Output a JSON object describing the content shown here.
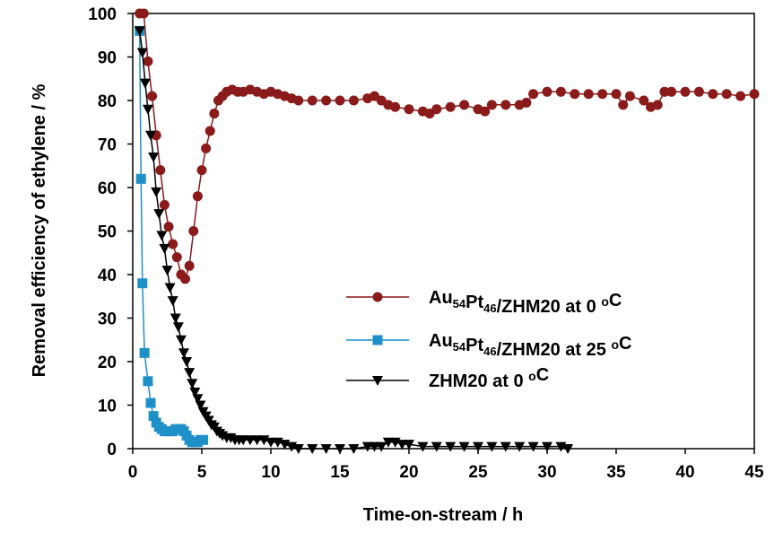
{
  "chart_data": {
    "type": "line",
    "xlabel": "Time-on-stream / h",
    "ylabel": "Removal efficiency of ethylene / %",
    "xlim": [
      0,
      45
    ],
    "ylim": [
      0,
      100
    ],
    "xticks": [
      "0",
      "5",
      "10",
      "15",
      "20",
      "25",
      "30",
      "35",
      "40",
      "45"
    ],
    "yticks": [
      "0",
      "10",
      "20",
      "30",
      "40",
      "50",
      "60",
      "70",
      "80",
      "90",
      "100"
    ],
    "grid": false,
    "legend_position": "center-right",
    "series": [
      {
        "name": "Au54Pt46/ZHM20 at 0 oC",
        "legend_parts": [
          {
            "t": "Au",
            "sub": false
          },
          {
            "t": "54",
            "sub": true
          },
          {
            "t": "Pt",
            "sub": false
          },
          {
            "t": "46",
            "sub": true
          },
          {
            "t": "/ZHM20 at 0 ",
            "sub": false
          },
          {
            "t": "o",
            "sup": true
          },
          {
            "t": "C",
            "sub": false
          }
        ],
        "color": "#8b1a1a",
        "marker": "circle",
        "x": [
          0.5,
          0.8,
          1.1,
          1.4,
          1.7,
          2.0,
          2.3,
          2.6,
          2.9,
          3.2,
          3.5,
          3.8,
          4.1,
          4.4,
          4.7,
          5.0,
          5.3,
          5.6,
          5.9,
          6.2,
          6.5,
          6.8,
          7.2,
          7.6,
          8.0,
          8.5,
          9.0,
          9.5,
          10.0,
          10.5,
          11.0,
          11.5,
          12.0,
          13,
          14,
          15,
          16,
          17,
          17.5,
          18,
          18.5,
          19,
          20,
          21,
          21.5,
          22,
          23,
          24,
          25,
          25.5,
          26,
          27,
          28,
          28.5,
          29,
          30,
          31,
          32,
          33,
          34,
          35,
          35.5,
          36,
          37,
          37.5,
          38,
          38.5,
          39,
          40,
          41,
          42,
          43,
          44,
          45
        ],
        "y": [
          100,
          100,
          89,
          81,
          72,
          64,
          56,
          51,
          47,
          44,
          40,
          39,
          42,
          50,
          58,
          64,
          69,
          73,
          77,
          80,
          81,
          82,
          82.5,
          82,
          82,
          82.5,
          82,
          81.5,
          82,
          81.5,
          81,
          80.5,
          80,
          80,
          80,
          80,
          80,
          80.5,
          81,
          80,
          79,
          78.5,
          78,
          77.5,
          77,
          78,
          78.5,
          79,
          78,
          77.5,
          79,
          79,
          79,
          79.5,
          81.5,
          82,
          82,
          81.5,
          81.5,
          81.5,
          81.5,
          79,
          81,
          80,
          78.5,
          79,
          82,
          82,
          82,
          82,
          81.5,
          81.5,
          81,
          81.5
        ]
      },
      {
        "name": "Au54Pt46/ZHM20 at 25 oC",
        "legend_parts": [
          {
            "t": "Au",
            "sub": false
          },
          {
            "t": "54",
            "sub": true
          },
          {
            "t": "Pt",
            "sub": false
          },
          {
            "t": "46",
            "sub": true
          },
          {
            "t": "/ZHM20 at 25 ",
            "sub": false
          },
          {
            "t": "o",
            "sup": true
          },
          {
            "t": "C",
            "sub": false
          }
        ],
        "color": "#1e90c8",
        "marker": "square",
        "x": [
          0.5,
          0.6,
          0.7,
          0.85,
          1.1,
          1.3,
          1.5,
          1.7,
          1.9,
          2.1,
          2.3,
          2.5,
          2.7,
          2.9,
          3.1,
          3.3,
          3.5,
          3.7,
          3.9,
          4.1,
          4.3,
          4.5,
          4.7,
          4.9,
          5.1
        ],
        "y": [
          96,
          62,
          38,
          22,
          15.5,
          10.5,
          7.5,
          6,
          5,
          4.5,
          4,
          4,
          4,
          4,
          4.5,
          4.5,
          4.5,
          4,
          3,
          2,
          1.5,
          1.5,
          1.5,
          2,
          2
        ]
      },
      {
        "name": "ZHM20 at 0 oC",
        "legend_parts": [
          {
            "t": "ZHM20 at 0 ",
            "sub": false
          },
          {
            "t": "o",
            "sup": true
          },
          {
            "t": "C",
            "sub": false
          }
        ],
        "color": "#000000",
        "marker": "triangle-down",
        "x": [
          0.5,
          0.7,
          0.9,
          1.1,
          1.3,
          1.5,
          1.7,
          1.9,
          2.1,
          2.3,
          2.5,
          2.7,
          2.9,
          3.1,
          3.3,
          3.5,
          3.7,
          3.9,
          4.1,
          4.3,
          4.5,
          4.7,
          4.9,
          5.1,
          5.3,
          5.5,
          5.7,
          5.9,
          6.1,
          6.3,
          6.5,
          6.8,
          7.1,
          7.4,
          7.7,
          8.0,
          8.5,
          9,
          9.5,
          10,
          10.5,
          11,
          11.5,
          12,
          13,
          14,
          15,
          16,
          17,
          17.5,
          18,
          18.5,
          19,
          19.5,
          20,
          21,
          22,
          23,
          24,
          25,
          26,
          27,
          28,
          29,
          30,
          31,
          31.5
        ],
        "y": [
          96,
          91,
          84,
          78,
          72,
          67,
          59,
          54,
          49,
          46,
          41,
          37,
          34,
          30,
          28,
          25,
          22,
          20,
          17.5,
          15,
          13,
          11.5,
          10,
          8.5,
          7.5,
          6.5,
          5.5,
          5,
          4,
          3.5,
          3,
          2.5,
          2.5,
          2,
          2,
          2,
          2,
          2,
          2,
          1.5,
          1.5,
          1,
          0.5,
          0,
          0,
          0,
          0,
          0,
          0.5,
          0.5,
          0.5,
          1.5,
          1.5,
          1,
          1,
          0.5,
          0.5,
          0.5,
          0.5,
          0.5,
          0.5,
          0.5,
          0.5,
          0.5,
          0.5,
          0.5,
          0
        ]
      }
    ]
  }
}
